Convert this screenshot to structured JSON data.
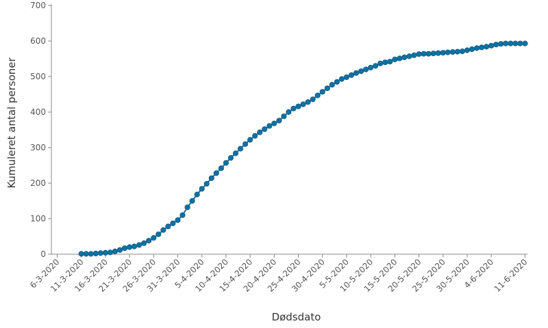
{
  "chart_data": {
    "type": "line",
    "title": "",
    "xlabel": "Dødsdato",
    "ylabel": "Kumuleret antal personer",
    "ylim": [
      0,
      700
    ],
    "yticks": [
      0,
      100,
      200,
      300,
      400,
      500,
      600,
      700
    ],
    "xticks": [
      "6-3-2020",
      "11-3-2020",
      "16-3-2020",
      "21-3-2020",
      "26-3-2020",
      "31-3-2020",
      "5-4-2020",
      "10-4-2020",
      "15-4-2020",
      "20-4-2020",
      "25-4-2020",
      "30-4-2020",
      "5-5-2020",
      "10-5-2020",
      "15-5-2020",
      "20-5-2020",
      "25-5-2020",
      "30-5-2020",
      "4-6-2020",
      "11-6-2020"
    ],
    "grid": false,
    "legend": "none",
    "colors": {
      "line": "#1f6b8f",
      "marker": "#0a73a6"
    },
    "series": [
      {
        "x": [
          "11-3-2020",
          "12-3-2020",
          "13-3-2020",
          "14-3-2020",
          "15-3-2020",
          "16-3-2020",
          "17-3-2020",
          "18-3-2020",
          "19-3-2020",
          "20-3-2020",
          "21-3-2020",
          "22-3-2020",
          "23-3-2020",
          "24-3-2020",
          "25-3-2020",
          "26-3-2020",
          "27-3-2020",
          "28-3-2020",
          "29-3-2020",
          "30-3-2020",
          "31-3-2020",
          "1-4-2020",
          "2-4-2020",
          "3-4-2020",
          "4-4-2020",
          "5-4-2020",
          "6-4-2020",
          "7-4-2020",
          "8-4-2020",
          "9-4-2020",
          "10-4-2020",
          "11-4-2020",
          "12-4-2020",
          "13-4-2020",
          "14-4-2020",
          "15-4-2020",
          "16-4-2020",
          "17-4-2020",
          "18-4-2020",
          "19-4-2020",
          "20-4-2020",
          "21-4-2020",
          "22-4-2020",
          "23-4-2020",
          "24-4-2020",
          "25-4-2020",
          "26-4-2020",
          "27-4-2020",
          "28-4-2020",
          "29-4-2020",
          "30-4-2020",
          "1-5-2020",
          "2-5-2020",
          "3-5-2020",
          "4-5-2020",
          "5-5-2020",
          "6-5-2020",
          "7-5-2020",
          "8-5-2020",
          "9-5-2020",
          "10-5-2020",
          "11-5-2020",
          "12-5-2020",
          "13-5-2020",
          "14-5-2020",
          "15-5-2020",
          "16-5-2020",
          "17-5-2020",
          "18-5-2020",
          "19-5-2020",
          "20-5-2020",
          "21-5-2020",
          "22-5-2020",
          "23-5-2020",
          "24-5-2020",
          "25-5-2020",
          "26-5-2020",
          "27-5-2020",
          "28-5-2020",
          "29-5-2020",
          "30-5-2020",
          "31-5-2020",
          "1-6-2020",
          "2-6-2020",
          "3-6-2020",
          "4-6-2020",
          "5-6-2020",
          "6-6-2020",
          "7-6-2020",
          "8-6-2020",
          "9-6-2020",
          "10-6-2020",
          "11-6-2020"
        ],
        "values": [
          1,
          1,
          1,
          2,
          3,
          4,
          5,
          8,
          12,
          17,
          20,
          22,
          26,
          31,
          38,
          46,
          56,
          68,
          78,
          87,
          96,
          110,
          132,
          150,
          168,
          184,
          198,
          214,
          228,
          242,
          257,
          271,
          284,
          297,
          310,
          322,
          333,
          343,
          352,
          361,
          368,
          376,
          388,
          400,
          410,
          416,
          422,
          428,
          436,
          447,
          457,
          467,
          477,
          485,
          493,
          498,
          504,
          510,
          515,
          520,
          525,
          530,
          537,
          540,
          542,
          548,
          551,
          554,
          557,
          560,
          563,
          564,
          564,
          565,
          566,
          567,
          568,
          569,
          570,
          571,
          574,
          577,
          580,
          582,
          584,
          587,
          590,
          592,
          593,
          593,
          593,
          593,
          593
        ]
      }
    ]
  }
}
